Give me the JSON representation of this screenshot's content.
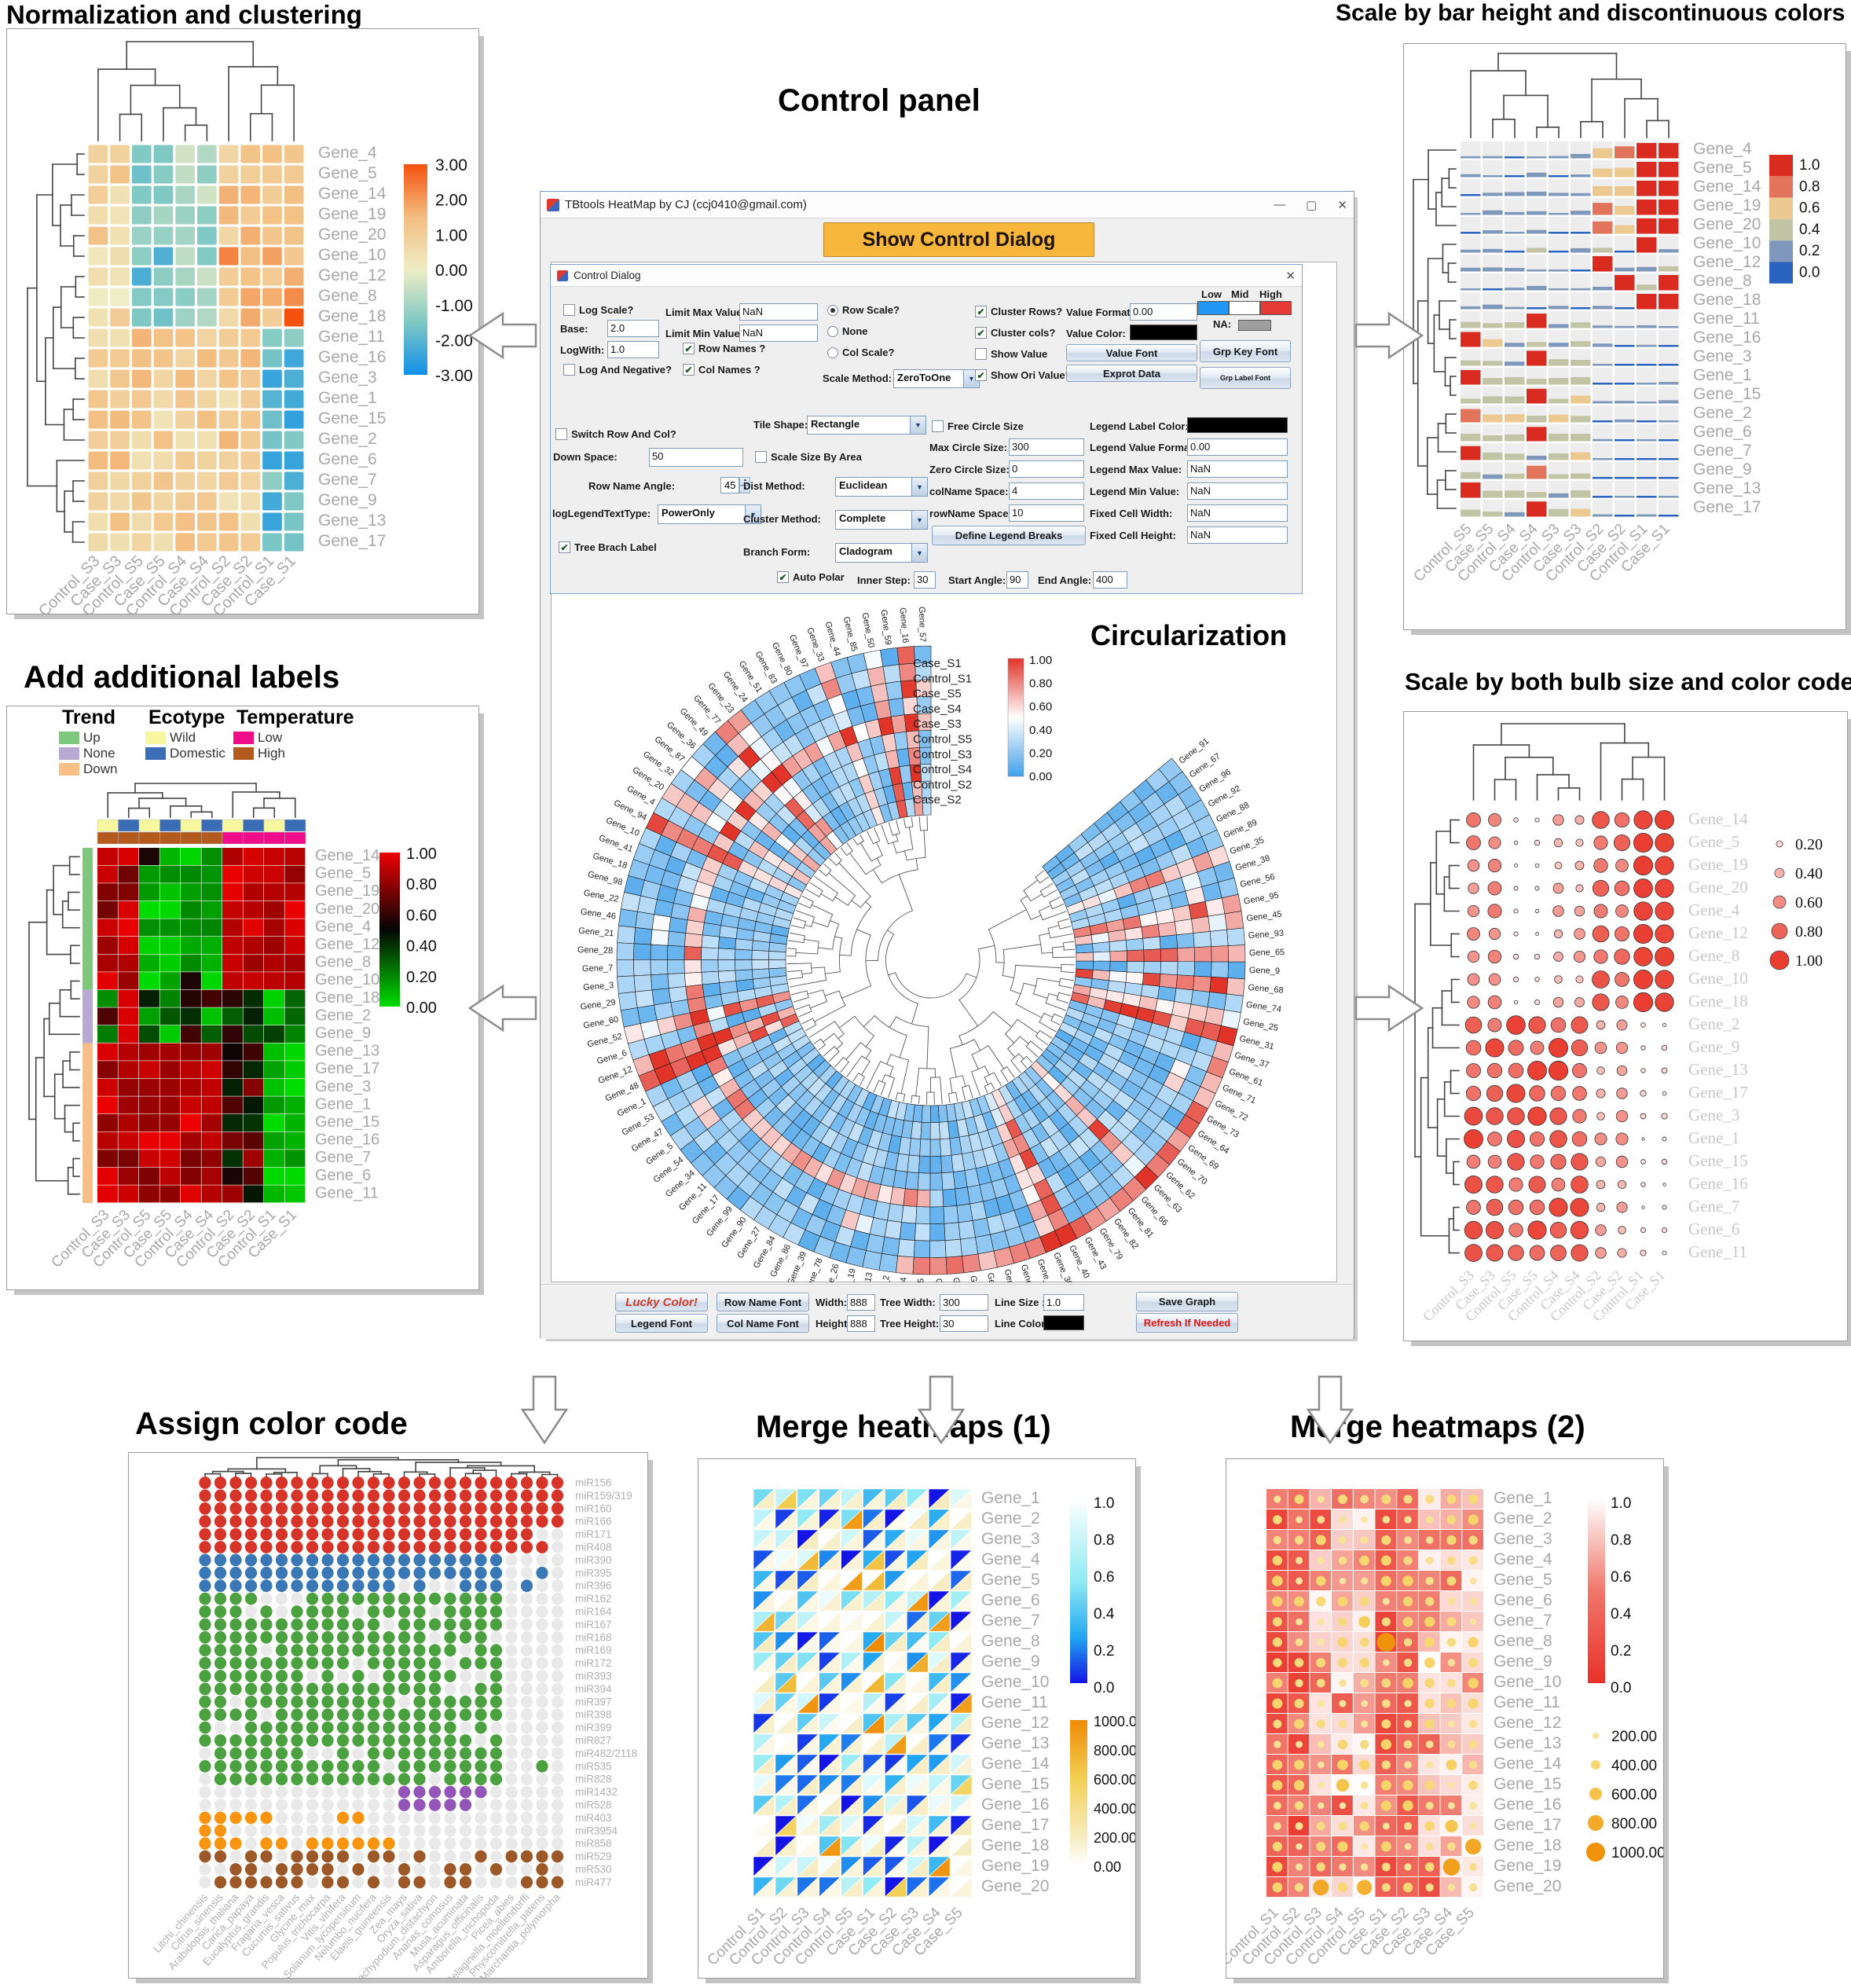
{
  "titles": {
    "top_left": "Normalization and clustering",
    "top_right": "Scale by bar height and discontinuous colors",
    "control": "Control panel",
    "circular": "Circularization",
    "mid_left": "Add additional labels",
    "mid_right": "Scale by both bulb size and color code",
    "bottom_left": "Assign color code",
    "bottom_center": "Merge heatmaps (1)",
    "bottom_right": "Merge heatmaps (2)"
  },
  "window": {
    "title": "TBtools HeatMap by CJ (ccj0410@gmail.com)",
    "show_dialog_button": "Show Control Dialog",
    "minimize": "—",
    "maximize": "▢",
    "close": "✕"
  },
  "dialog": {
    "title": "Control Dialog",
    "close": "✕",
    "controls": {
      "log_scale": {
        "label": "Log Scale?",
        "checked": false
      },
      "base": {
        "label": "Base:",
        "value": "2.0"
      },
      "logwith": {
        "label": "LogWith:",
        "value": "1.0"
      },
      "log_and_negative": {
        "label": "Log And Negative?",
        "checked": false
      },
      "limit_max": {
        "label": "Limit Max Value:",
        "value": "NaN"
      },
      "limit_min": {
        "label": "Limit Min Value:",
        "value": "NaN"
      },
      "row_names": {
        "label": "Row Names ?",
        "checked": true
      },
      "col_names": {
        "label": "Col Names ?",
        "checked": true
      },
      "row_scale": {
        "label": "Row Scale?",
        "selected": true
      },
      "none_scale": {
        "label": "None",
        "selected": false
      },
      "col_scale": {
        "label": "Col Scale?",
        "selected": false
      },
      "scale_method": {
        "label": "Scale Method:",
        "value": "ZeroToOne"
      },
      "cluster_rows": {
        "label": "Cluster Rows?",
        "checked": true
      },
      "cluster_cols": {
        "label": "Cluster cols?",
        "checked": true
      },
      "show_value": {
        "label": "Show Value",
        "checked": false
      },
      "show_ori_value": {
        "label": "Show Ori Value?",
        "checked": true
      },
      "value_format": {
        "label": "Value Format:",
        "value": "0.00"
      },
      "value_color": {
        "label": "Value Color:",
        "color": "#000000"
      },
      "low": {
        "label": "Low"
      },
      "mid": {
        "label": "Mid"
      },
      "high": {
        "label": "High"
      },
      "na": {
        "label": "NA:",
        "color": "#9e9e9e"
      },
      "value_font": {
        "label": "Value Font"
      },
      "exprot_data": {
        "label": "Exprot Data"
      },
      "grp_key_font": {
        "label": "Grp Key Font"
      },
      "grp_label_font": {
        "label": "Grp Label Font"
      },
      "switch_row_col": {
        "label": "Switch Row And Col?",
        "checked": false
      },
      "down_space": {
        "label": "Down Space:",
        "value": "50"
      },
      "row_name_angle": {
        "label": "Row Name Angle:",
        "value": "45"
      },
      "log_legend_text_type": {
        "label": "logLegendTextType:",
        "value": "PowerOnly"
      },
      "tree_brach_label": {
        "label": "Tree Brach Label",
        "checked": true
      },
      "tile_shape": {
        "label": "Tile Shape:",
        "value": "Rectangle"
      },
      "scale_size_by_area": {
        "label": "Scale Size By Area",
        "checked": false
      },
      "dist_method": {
        "label": "Dist Method:",
        "value": "Euclidean"
      },
      "cluster_method": {
        "label": "Cluster Method:",
        "value": "Complete"
      },
      "branch_form": {
        "label": "Branch Form:",
        "value": "Cladogram"
      },
      "free_circle_size": {
        "label": "Free Circle Size",
        "checked": false
      },
      "max_circle_size": {
        "label": "Max Circle Size:",
        "value": "300"
      },
      "zero_circle_size": {
        "label": "Zero Circle Size:",
        "value": "0"
      },
      "colname_space": {
        "label": "colName Space:",
        "value": "4"
      },
      "rowname_space": {
        "label": "rowName Space:",
        "value": "10"
      },
      "define_legend_breaks": {
        "label": "Define Legend Breaks"
      },
      "legend_label_color": {
        "label": "Legend Label Color:",
        "color": "#000000"
      },
      "legend_value_format": {
        "label": "Legend Value Format:",
        "value": "0.00"
      },
      "legend_max_value": {
        "label": "Legend Max Value:",
        "value": "NaN"
      },
      "legend_min_value": {
        "label": "Legend Min Value:",
        "value": "NaN"
      },
      "fixed_cell_width": {
        "label": "Fixed Cell Width:",
        "value": "NaN"
      },
      "fixed_cell_height": {
        "label": "Fixed Cell Height:",
        "value": "NaN"
      },
      "auto_polar": {
        "label": "Auto Polar",
        "checked": true
      },
      "inner_step": {
        "label": "Inner Step:",
        "value": "30"
      },
      "start_angle": {
        "label": "Start Angle:",
        "value": "90"
      },
      "end_angle": {
        "label": "End Angle:",
        "value": "400"
      }
    }
  },
  "bottombar": {
    "lucky_color": {
      "label": "Lucky Color!"
    },
    "legend_font": {
      "label": "Legend Font"
    },
    "row_name_font": {
      "label": "Row Name Font"
    },
    "col_name_font": {
      "label": "Col Name Font"
    },
    "width": {
      "label": "Width:",
      "value": "888"
    },
    "height": {
      "label": "Height:",
      "value": "888"
    },
    "tree_width": {
      "label": "Tree Width:",
      "value": "300"
    },
    "tree_height": {
      "label": "Tree Height:",
      "value": "30"
    },
    "line_size": {
      "label": "Line Size :",
      "value": "1.0"
    },
    "line_color": {
      "label": "Line Color:",
      "color": "#000000"
    },
    "save_graph": {
      "label": "Save Graph"
    },
    "refresh": {
      "label": "Refresh If Needed"
    }
  },
  "samples_paired": [
    "Control_S3",
    "Case_S3",
    "Control_S5",
    "Case_S5",
    "Control_S4",
    "Case_S4",
    "Control_S2",
    "Case_S2",
    "Control_S1",
    "Case_S1"
  ],
  "samples_paired_rev": [
    "Control_S5",
    "Case_S5",
    "Control_S4",
    "Case_S4",
    "Control_S3",
    "Case_S3",
    "Control_S2",
    "Case_S2",
    "Control_S1",
    "Case_S1"
  ],
  "samples_grouped": [
    "Control_S1",
    "Control_S2",
    "Control_S3",
    "Control_S4",
    "Control_S5",
    "Case_S1",
    "Case_S2",
    "Case_S3",
    "Case_S4",
    "Case_S5"
  ],
  "genes_cluster1": [
    "Gene_4",
    "Gene_5",
    "Gene_14",
    "Gene_19",
    "Gene_20",
    "Gene_10",
    "Gene_12",
    "Gene_8",
    "Gene_18",
    "Gene_11",
    "Gene_16",
    "Gene_3",
    "Gene_1",
    "Gene_15",
    "Gene_2",
    "Gene_6",
    "Gene_7",
    "Gene_9",
    "Gene_13",
    "Gene_17"
  ],
  "genes_cluster2": [
    "Gene_14",
    "Gene_5",
    "Gene_19",
    "Gene_20",
    "Gene_4",
    "Gene_12",
    "Gene_8",
    "Gene_10",
    "Gene_18",
    "Gene_2",
    "Gene_9",
    "Gene_13",
    "Gene_17",
    "Gene_3",
    "Gene_1",
    "Gene_15",
    "Gene_16",
    "Gene_7",
    "Gene_6",
    "Gene_11"
  ],
  "genes_numeric": [
    "Gene_1",
    "Gene_2",
    "Gene_3",
    "Gene_4",
    "Gene_5",
    "Gene_6",
    "Gene_7",
    "Gene_8",
    "Gene_9",
    "Gene_10",
    "Gene_11",
    "Gene_12",
    "Gene_13",
    "Gene_14",
    "Gene_15",
    "Gene_16",
    "Gene_17",
    "Gene_18",
    "Gene_19",
    "Gene_20"
  ],
  "panel1": {
    "legend_ticks": [
      "3.00",
      "2.00",
      "1.00",
      "0.00",
      "-1.00",
      "-2.00",
      "-3.00"
    ]
  },
  "panel2": {
    "legend_ticks": [
      "1.0",
      "0.8",
      "0.6",
      "0.4",
      "0.2",
      "0.0"
    ]
  },
  "panel3": {
    "legend_ticks": [
      "1.00",
      "0.80",
      "0.60",
      "0.40",
      "0.20",
      "0.00"
    ],
    "trend": {
      "title": "Trend",
      "items": [
        {
          "label": "Up",
          "color": "#7ec87e"
        },
        {
          "label": "None",
          "color": "#b7a8d4"
        },
        {
          "label": "Down",
          "color": "#f9bf87"
        }
      ]
    },
    "ecotype": {
      "title": "Ecotype",
      "items": [
        {
          "label": "Wild",
          "color": "#f7f7a0"
        },
        {
          "label": "Domestic",
          "color": "#3a6db5"
        }
      ]
    },
    "temperature": {
      "title": "Temperature",
      "items": [
        {
          "label": "Low",
          "color": "#ef0d89"
        },
        {
          "label": "High",
          "color": "#b35a1f"
        }
      ]
    },
    "col_ecotype": [
      0,
      1,
      0,
      1,
      0,
      1,
      0,
      1,
      0,
      1
    ],
    "col_temperature": [
      "high",
      "high",
      "high",
      "high",
      "high",
      "high",
      "low",
      "low",
      "low",
      "low"
    ],
    "row_trend_counts": [
      8,
      3,
      9
    ]
  },
  "panel4": {
    "legend": [
      "0.20",
      "0.40",
      "0.60",
      "0.80",
      "1.00"
    ]
  },
  "panel5": {
    "mirnas": [
      "miR156",
      "miR159/319",
      "miR160",
      "miR166",
      "miR171",
      "miR408",
      "miR390",
      "miR395",
      "miR396",
      "miR162",
      "miR164",
      "miR167",
      "miR168",
      "miR169",
      "miR172",
      "miR393",
      "miR394",
      "miR397",
      "miR398",
      "miR399",
      "miR827",
      "miR482/2118",
      "miR535",
      "miR828",
      "miR1432",
      "miR528",
      "miR403",
      "miR3954",
      "miR858",
      "miR529",
      "miR530",
      "miR477"
    ],
    "species": [
      "Litchi_chinensis",
      "Citrus_sinensis",
      "Arabidopsis_thaliana",
      "Carica_papaya",
      "Eucalyptus_grandis",
      "Fragaria_vesca",
      "Cucumis_sativus",
      "Glycine_max",
      "Populus_trichocarpa",
      "Vitis_vinifera",
      "Solanum_lycopersicum",
      "Nelumbo_nucifera",
      "Elaeis_guineensis",
      "Zea_mays",
      "Oryza_sativa",
      "Brachypodium_distachyon",
      "Ananas_comosus",
      "Musa_acuminata",
      "Asparagus_officinalis",
      "Amborella_trichopoda",
      "Picea_abies",
      "Selaginella_moellendorffi",
      "Physcomitrella_patens",
      "Marchantia_polymorpha"
    ],
    "group_rows": [
      6,
      3,
      15,
      2,
      3,
      3
    ],
    "group_colors": [
      "#d63429",
      "#3a77b5",
      "#4ba03f",
      "#9356b8",
      "#f79410",
      "#9c5827"
    ],
    "absent_color": "#e9e9e9"
  },
  "panel6": {
    "blue_ticks": [
      "1.0",
      "0.8",
      "0.6",
      "0.4",
      "0.2",
      "0.0"
    ],
    "yellow_ticks": [
      "1000.00",
      "800.00",
      "600.00",
      "400.00",
      "200.00",
      "0.00"
    ]
  },
  "panel7": {
    "red_ticks": [
      "1.0",
      "0.8",
      "0.6",
      "0.4",
      "0.2",
      "0.0"
    ],
    "dot_legend": [
      "200.00",
      "400.00",
      "600.00",
      "800.00",
      "1000.00"
    ]
  },
  "circular": {
    "ring_labels": [
      "Case_S1",
      "Control_S1",
      "Case_S5",
      "Case_S4",
      "Case_S3",
      "Control_S5",
      "Control_S3",
      "Control_S4",
      "Control_S2",
      "Case_S2"
    ],
    "legend_ticks": [
      "1.00",
      "0.80",
      "0.60",
      "0.40",
      "0.20",
      "0.00"
    ],
    "gene_order": [
      "Gene_57",
      "Gene_16",
      "Gene_59",
      "Gene_50",
      "Gene_85",
      "Gene_44",
      "Gene_33",
      "Gene_97",
      "Gene_80",
      "Gene_83",
      "Gene_51",
      "Gene_24",
      "Gene_23",
      "Gene_77",
      "Gene_49",
      "Gene_36",
      "Gene_87",
      "Gene_32",
      "Gene_20",
      "Gene_4",
      "Gene_94",
      "Gene_10",
      "Gene_41",
      "Gene_18",
      "Gene_98",
      "Gene_22",
      "Gene_46",
      "Gene_21",
      "Gene_28",
      "Gene_7",
      "Gene_3",
      "Gene_29",
      "Gene_60",
      "Gene_52",
      "Gene_6",
      "Gene_12",
      "Gene_48",
      "Gene_1",
      "Gene_53",
      "Gene_47",
      "Gene_5",
      "Gene_54",
      "Gene_34",
      "Gene_11",
      "Gene_17",
      "Gene_99",
      "Gene_90",
      "Gene_27",
      "Gene_84",
      "Gene_86",
      "Gene_39",
      "Gene_78",
      "Gene_26",
      "Gene_19",
      "Gene_13",
      "Gene_2",
      "Gene_14",
      "Gene_15",
      "Gene_100",
      "Gene_55",
      "Gene_42",
      "Gene_75",
      "Gene_8",
      "Gene_76",
      "Gene_58",
      "Gene_30",
      "Gene_40",
      "Gene_43",
      "Gene_79",
      "Gene_82",
      "Gene_81",
      "Gene_66",
      "Gene_63",
      "Gene_62",
      "Gene_70",
      "Gene_69",
      "Gene_64",
      "Gene_73",
      "Gene_72",
      "Gene_71",
      "Gene_61",
      "Gene_37",
      "Gene_31",
      "Gene_25",
      "Gene_74",
      "Gene_68",
      "Gene_9",
      "Gene_65",
      "Gene_93",
      "Gene_45",
      "Gene_95",
      "Gene_56",
      "Gene_38",
      "Gene_35",
      "Gene_89",
      "Gene_88",
      "Gene_92",
      "Gene_96",
      "Gene_67",
      "Gene_91"
    ]
  },
  "colors": {
    "row_label": "#a8a8a8",
    "accent_button": "#f6b73c",
    "heat1_stops": [
      "#1190e8",
      "#7fc8c4",
      "#efedc5",
      "#f3bd80",
      "#f4510d"
    ],
    "heat2_bins": [
      "#2b63c1",
      "#7e97bb",
      "#c2c5a5",
      "#ecc990",
      "#e2745c",
      "#d92b20"
    ],
    "heat3_stops": [
      "#00dd00",
      "#050505",
      "#ee0000"
    ],
    "circ_scale": [
      "#41a0ea",
      "#ffffff",
      "#e13328"
    ],
    "bubble_scale": [
      "#ffffff",
      "#e93d30"
    ],
    "tri_blue": [
      "#1414e6",
      "#22a7f0",
      "#8feaf3",
      "#ffffff"
    ],
    "tri_yellow": [
      "#ffffff",
      "#f7ecc0",
      "#f2cf52",
      "#ef8b05"
    ],
    "p7_scale": [
      "#e93128",
      "#f0776b",
      "#fad4cf",
      "#ffffff"
    ],
    "dot_scale": [
      "#faf0c4",
      "#f6cf5a",
      "#f0920a"
    ],
    "low_swatch": "#2196f3",
    "mid_swatch": "#ffffff",
    "high_swatch": "#e53935"
  }
}
